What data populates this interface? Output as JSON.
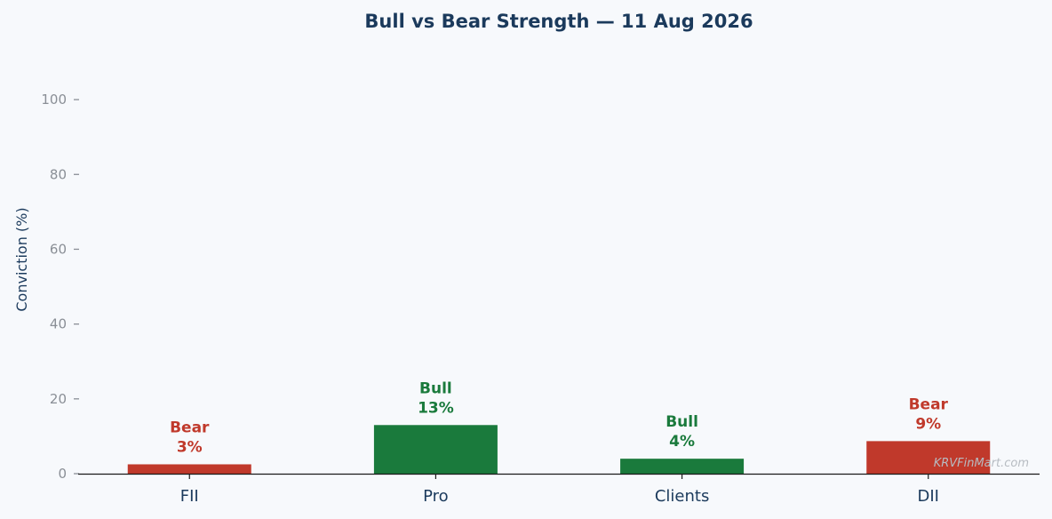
{
  "chart_data": {
    "type": "bar",
    "title": "Bull vs Bear Strength — 11 Aug 2026",
    "xlabel": "",
    "ylabel": "Conviction (%)",
    "ylim": [
      0,
      110
    ],
    "yticks": [
      0,
      20,
      40,
      60,
      80,
      100
    ],
    "grid": false,
    "categories": [
      "FII",
      "Pro",
      "Clients",
      "DII"
    ],
    "values": [
      2.5,
      13,
      4,
      8.7
    ],
    "bar_labels": [
      {
        "stance": "Bear",
        "value_text": "3%"
      },
      {
        "stance": "Bull",
        "value_text": "13%"
      },
      {
        "stance": "Bull",
        "value_text": "4%"
      },
      {
        "stance": "Bear",
        "value_text": "9%"
      }
    ],
    "colors": {
      "Bull": "#1a7a3c",
      "Bear": "#c0392b"
    },
    "watermark": "KRVFinMart.com"
  }
}
